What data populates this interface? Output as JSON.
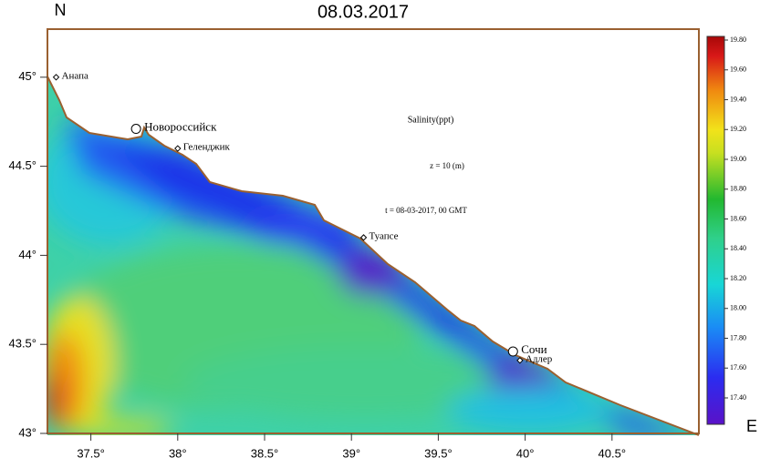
{
  "map": {
    "title": "08.03.2017",
    "north_label": "N",
    "east_label": "E",
    "annotations": [
      "Salinity(ppt)",
      "z = 10 (m)",
      "t = 08-03-2017, 00 GMT"
    ],
    "xlim": [
      37.25,
      41.0
    ],
    "ylim": [
      43.0,
      45.27
    ],
    "xticks": [
      {
        "value": 37.5,
        "label": "37.5°"
      },
      {
        "value": 38,
        "label": "38°"
      },
      {
        "value": 38.5,
        "label": "38.5°"
      },
      {
        "value": 39,
        "label": "39°"
      },
      {
        "value": 39.5,
        "label": "39.5°"
      },
      {
        "value": 40,
        "label": "40°"
      },
      {
        "value": 40.5,
        "label": "40.5°"
      }
    ],
    "yticks": [
      {
        "value": 43,
        "label": "43°"
      },
      {
        "value": 43.5,
        "label": "43.5°"
      },
      {
        "value": 44,
        "label": "44°"
      },
      {
        "value": 44.5,
        "label": "44.5°"
      },
      {
        "value": 45,
        "label": "45°"
      }
    ],
    "cities": [
      {
        "name": "Анапа",
        "lon": 37.3,
        "lat": 45.0,
        "marker": "diamond"
      },
      {
        "name": "Новороссийск",
        "lon": 37.76,
        "lat": 44.71,
        "marker": "circle"
      },
      {
        "name": "Геленджик",
        "lon": 38.0,
        "lat": 44.6,
        "marker": "diamond"
      },
      {
        "name": "Туапсе",
        "lon": 39.07,
        "lat": 44.1,
        "marker": "diamond"
      },
      {
        "name": "Сочи",
        "lon": 39.93,
        "lat": 43.46,
        "marker": "circle"
      },
      {
        "name": "Адлер",
        "lon": 39.97,
        "lat": 43.41,
        "marker": "diamond"
      }
    ],
    "colorbar_ticks": [
      {
        "value": 17.4,
        "label": "17.40"
      },
      {
        "value": 17.6,
        "label": "17.60"
      },
      {
        "value": 17.8,
        "label": "17.80"
      },
      {
        "value": 18.0,
        "label": "18.00"
      },
      {
        "value": 18.2,
        "label": "18.20"
      },
      {
        "value": 18.4,
        "label": "18.40"
      },
      {
        "value": 18.6,
        "label": "18.60"
      },
      {
        "value": 18.8,
        "label": "18.80"
      },
      {
        "value": 19.0,
        "label": "19.00"
      },
      {
        "value": 19.2,
        "label": "19.20"
      },
      {
        "value": 19.4,
        "label": "19.40"
      },
      {
        "value": 19.6,
        "label": "19.60"
      },
      {
        "value": 19.8,
        "label": "19.80"
      }
    ]
  }
}
